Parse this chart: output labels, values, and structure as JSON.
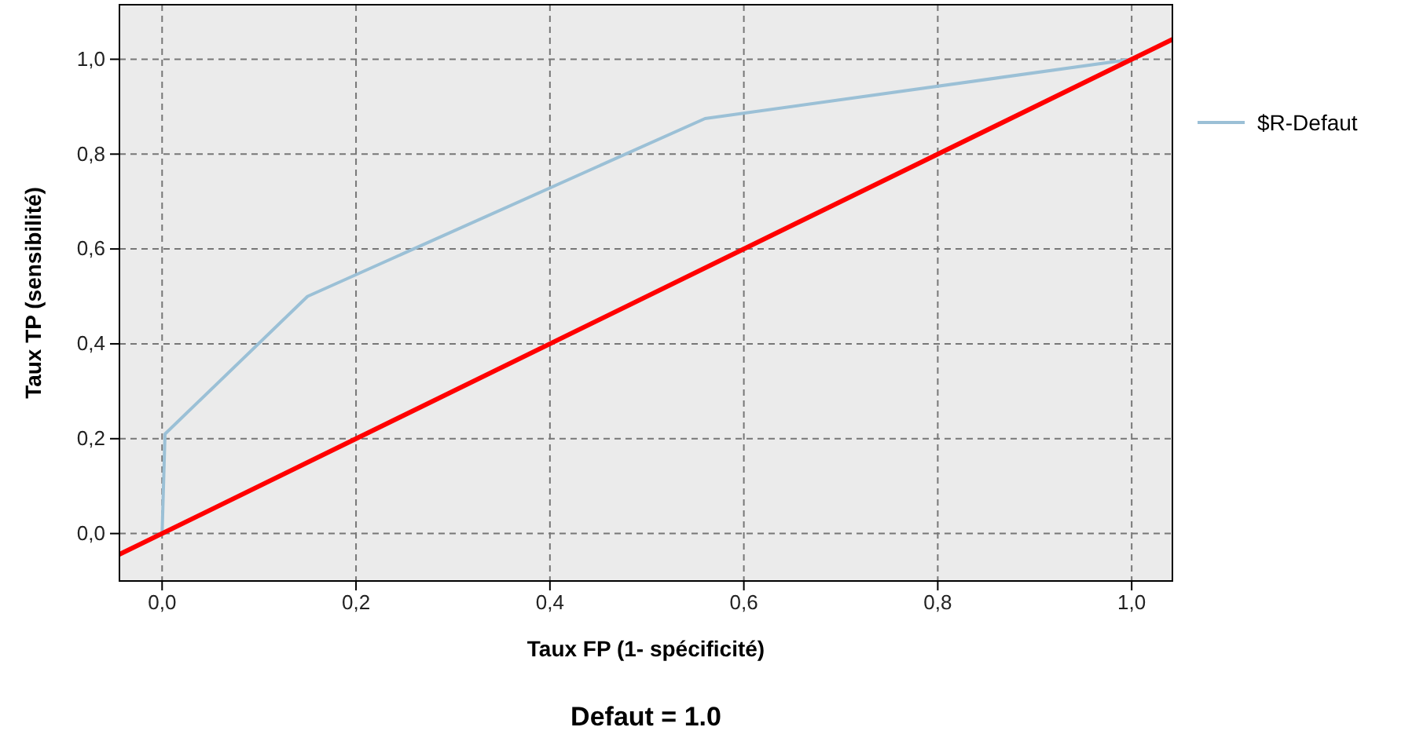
{
  "chart_data": {
    "type": "line",
    "title": "Defaut = 1.0",
    "xlabel": "Taux FP (1- spécificité)",
    "ylabel": "Taux TP (sensibilité)",
    "xlim": [
      -0.044,
      1.042
    ],
    "ylim": [
      -0.1,
      1.115
    ],
    "xticks": [
      {
        "value": 0,
        "label": "0,0"
      },
      {
        "value": 0.2,
        "label": "0,2"
      },
      {
        "value": 0.4,
        "label": "0,4"
      },
      {
        "value": 0.6,
        "label": "0,6"
      },
      {
        "value": 0.8,
        "label": "0,8"
      },
      {
        "value": 1,
        "label": "1,0"
      }
    ],
    "yticks": [
      {
        "value": 0,
        "label": "0,0"
      },
      {
        "value": 0.2,
        "label": "0,2"
      },
      {
        "value": 0.4,
        "label": "0,4"
      },
      {
        "value": 0.6,
        "label": "0,6"
      },
      {
        "value": 0.8,
        "label": "0,8"
      },
      {
        "value": 1,
        "label": "1,0"
      }
    ],
    "series": [
      {
        "name": "$R-Defaut",
        "color": "#9bc0d6",
        "x": [
          0,
          0.003,
          0.15,
          0.56,
          1
        ],
        "values": [
          0,
          0.21,
          0.5,
          0.875,
          1
        ]
      },
      {
        "color": "#ff0000",
        "x": [
          -0.044,
          1.042
        ],
        "values": [
          -0.044,
          1.042
        ]
      }
    ],
    "grid": true,
    "legend": "right",
    "marker": "none",
    "line_style": "solid"
  }
}
